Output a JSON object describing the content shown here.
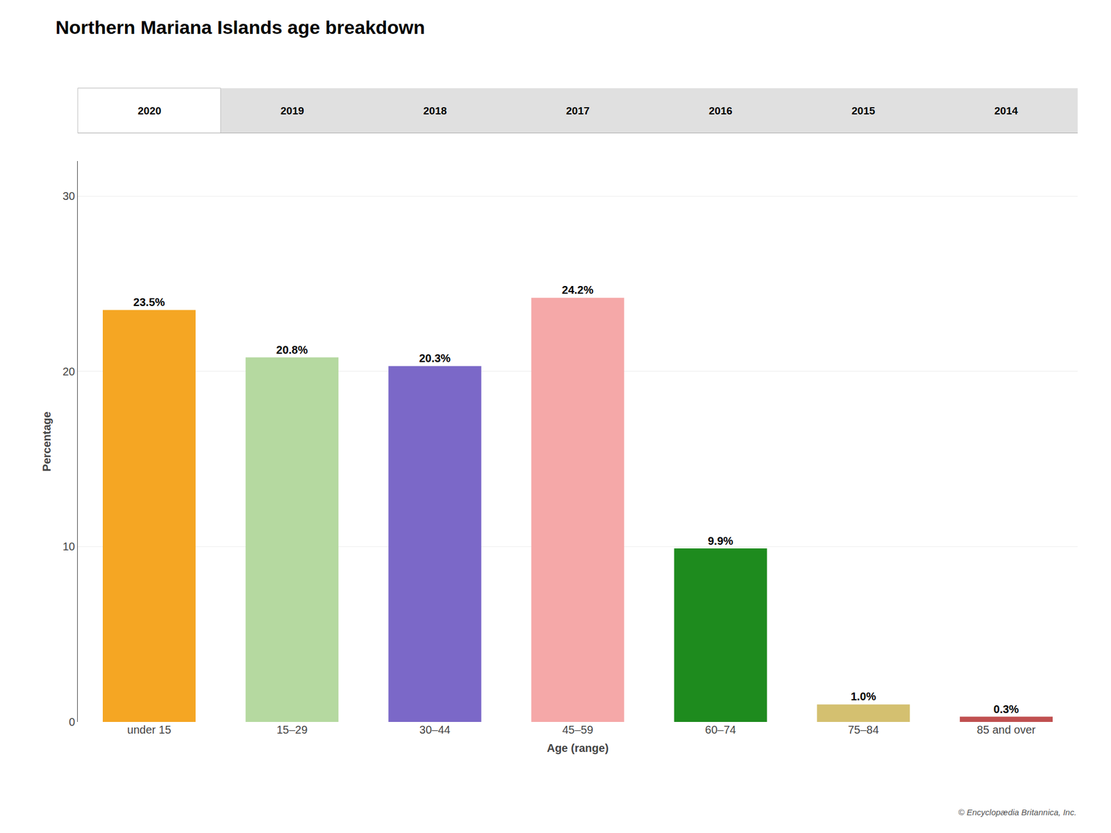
{
  "chart_data": {
    "type": "bar",
    "title": "Northern Mariana Islands age breakdown",
    "categories": [
      "under 15",
      "15–29",
      "30–44",
      "45–59",
      "60–74",
      "75–84",
      "85 and over"
    ],
    "values": [
      23.5,
      20.8,
      20.3,
      24.2,
      9.9,
      1.0,
      0.3
    ],
    "value_labels": [
      "23.5%",
      "20.8%",
      "20.3%",
      "24.2%",
      "9.9%",
      "1.0%",
      "0.3%"
    ],
    "data_labels": true,
    "colors": [
      "#F5A623",
      "#B5D9A0",
      "#7B68C8",
      "#F5A8A8",
      "#1E8B1E",
      "#D4C070",
      "#C05050"
    ],
    "x_label": "Age (range)",
    "y_label": "Percentage",
    "ylim": [
      0,
      32
    ],
    "yticks": [
      0,
      10,
      20,
      30
    ],
    "grid": true,
    "annotations": [
      "2020",
      "2019",
      "2018",
      "2017",
      "2016",
      "2015",
      "2014",
      "© Encyclopædia Britannica, Inc."
    ]
  }
}
